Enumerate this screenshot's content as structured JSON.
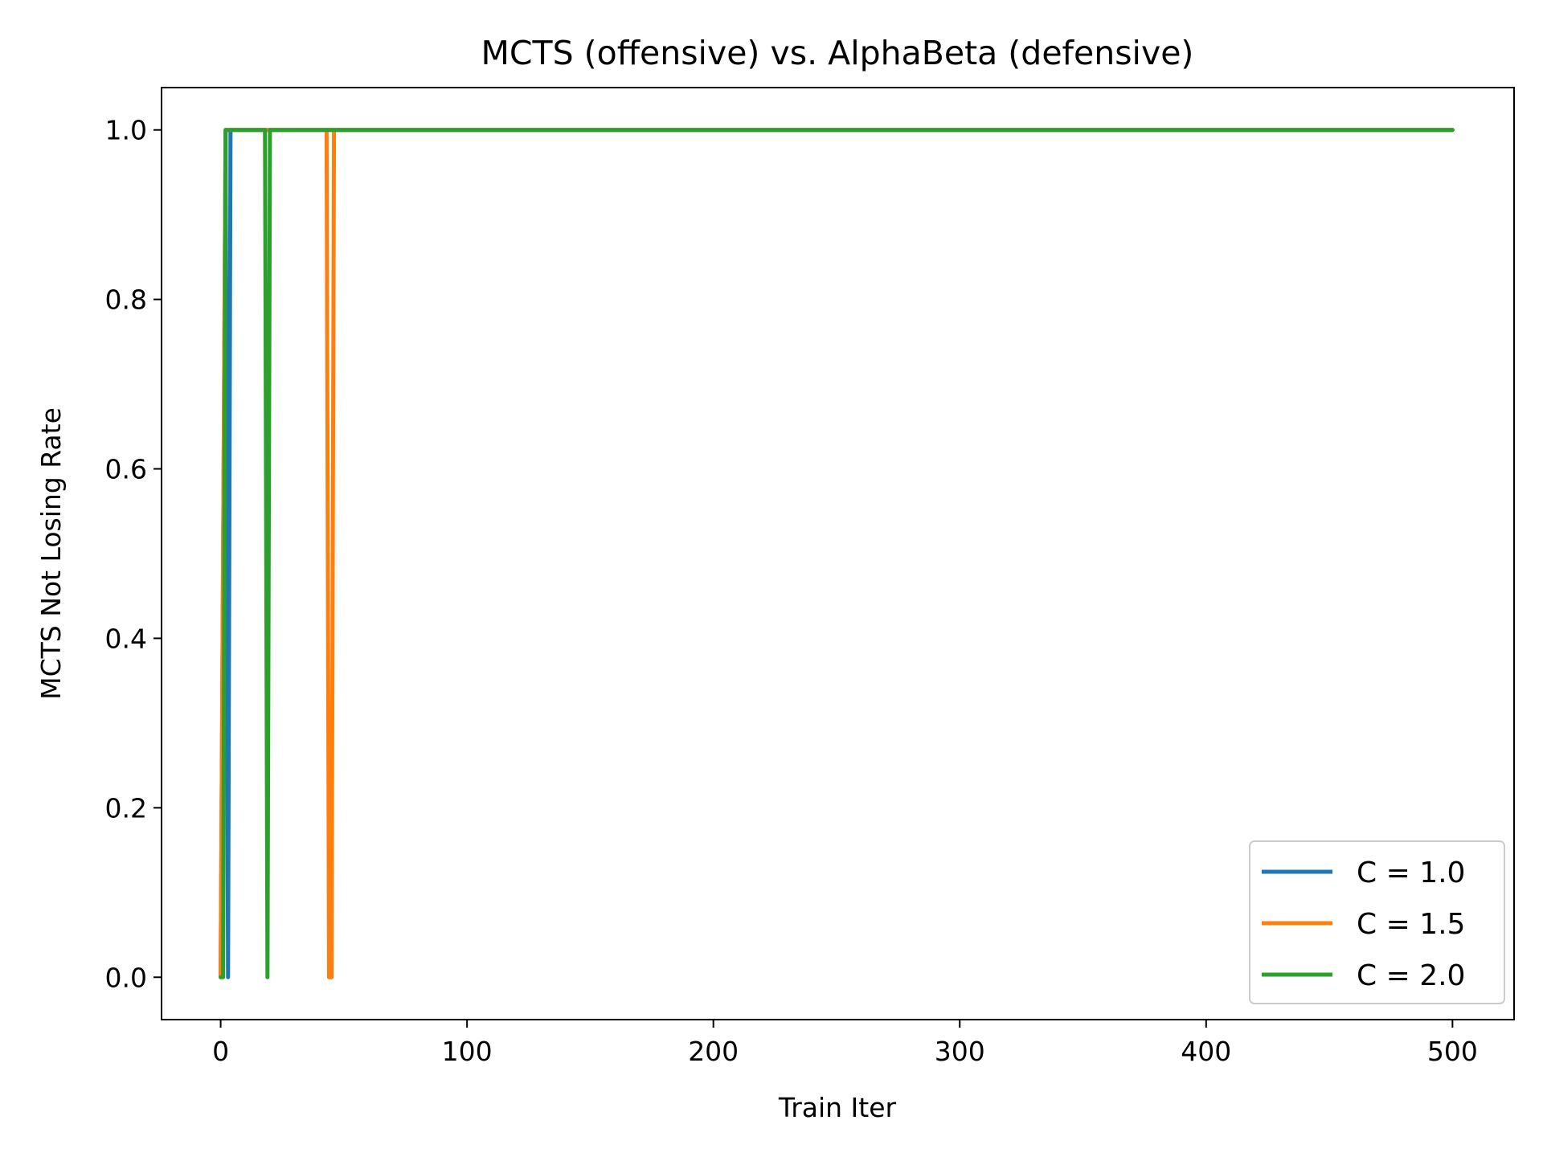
{
  "chart_data": {
    "type": "line",
    "title": "MCTS (offensive) vs. AlphaBeta (defensive)",
    "xlabel": "Train Iter",
    "ylabel": "MCTS Not Losing Rate",
    "xlim": [
      -24,
      525
    ],
    "ylim": [
      -0.05,
      1.05
    ],
    "xticks": [
      0,
      100,
      200,
      300,
      400,
      500
    ],
    "yticks": [
      0.0,
      0.2,
      0.4,
      0.6,
      0.8,
      1.0
    ],
    "xtick_labels": [
      "0",
      "100",
      "200",
      "300",
      "400",
      "500"
    ],
    "ytick_labels": [
      "0.0",
      "0.2",
      "0.4",
      "0.6",
      "0.8",
      "1.0"
    ],
    "grid": false,
    "legend_position": "lower-right",
    "series": [
      {
        "name": "C = 1.0",
        "color": "#1f77b4",
        "x": [
          0,
          2,
          3,
          4,
          500
        ],
        "y": [
          0,
          1,
          0,
          1,
          1
        ]
      },
      {
        "name": "C = 1.5",
        "color": "#ff7f0e",
        "x": [
          0,
          2,
          43,
          44,
          45,
          46,
          500
        ],
        "y": [
          0,
          1,
          1,
          0,
          0,
          1,
          1
        ]
      },
      {
        "name": "C = 2.0",
        "color": "#2ca02c",
        "x": [
          0,
          1,
          2,
          18,
          19,
          20,
          21,
          500
        ],
        "y": [
          0,
          0,
          1,
          1,
          0,
          1,
          1,
          1
        ]
      }
    ]
  }
}
